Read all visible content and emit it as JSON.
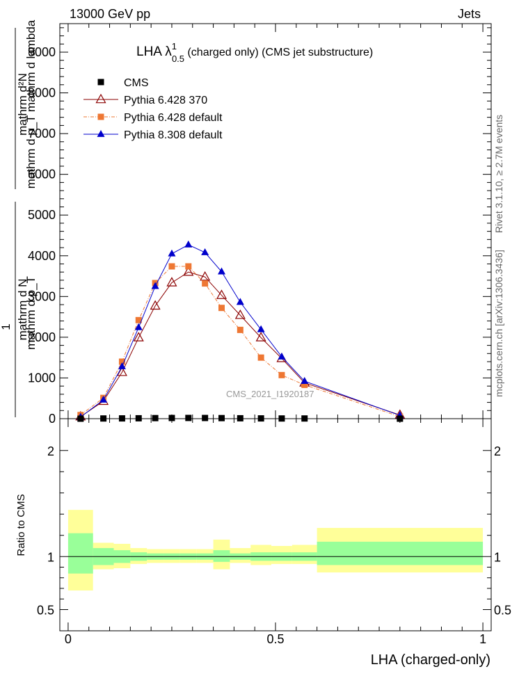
{
  "header": {
    "left_label": "13000 GeV pp",
    "right_label": "Jets"
  },
  "side_labels": {
    "rivet": "Rivet 3.1.10, ≥ 2.7M events",
    "mcplots": "mcplots.cern.ch [arXiv:1306.3436]"
  },
  "main_plot": {
    "title_prefix": "LHA λ",
    "title_sup": "1",
    "title_sub": "0.5",
    "title_suffix": " (charged only) (CMS jet substructure)",
    "watermark": "CMS_2021_I1920187",
    "ylabel_numerator_1": "mathrm d²N",
    "ylabel_denominator_1": "mathrm d p_T mathrm d lambda",
    "ylabel_fraction_prefix": "1",
    "ylabel_numerator_2": "mathrm d N",
    "ylabel_denominator_2": "mathrm d p_T",
    "ylim": [
      0,
      9700
    ],
    "yticks": [
      0,
      1000,
      2000,
      3000,
      4000,
      5000,
      6000,
      7000,
      8000,
      9000
    ],
    "ytick_labels": [
      "0",
      "1000",
      "2000",
      "3000",
      "4000",
      "5000",
      "6000",
      "7000",
      "8000",
      "9000"
    ]
  },
  "ratio_plot": {
    "ylabel": "Ratio to CMS",
    "ylim": [
      0.3,
      2.3
    ],
    "yticks": [
      0.5,
      1,
      2
    ],
    "ytick_labels": [
      "0.5",
      "1",
      "2"
    ]
  },
  "x_axis": {
    "label": "LHA (charged-only)",
    "xlim": [
      -0.02,
      1.02
    ],
    "xticks": [
      0,
      0.5,
      1
    ],
    "xtick_labels": [
      "0",
      "0.5",
      "1"
    ]
  },
  "legend": {
    "placement": "top-left",
    "entries": [
      {
        "label": "CMS",
        "color": "#000000",
        "marker": "square"
      },
      {
        "label": "Pythia 6.428 370",
        "color": "#8b0000",
        "marker": "open-triangle"
      },
      {
        "label": "Pythia 6.428 default",
        "color": "#ee7733",
        "marker": "square"
      },
      {
        "label": "Pythia 8.308 default",
        "color": "#0000cc",
        "marker": "triangle"
      }
    ]
  },
  "chart_data": {
    "type": "line",
    "title": "LHA λ^1_0.5 (charged only) (CMS jet substructure)",
    "xlabel": "LHA (charged-only)",
    "x": [
      0.03,
      0.085,
      0.13,
      0.17,
      0.21,
      0.25,
      0.29,
      0.33,
      0.37,
      0.415,
      0.465,
      0.515,
      0.57,
      0.8
    ],
    "x_bins": [
      [
        0.0,
        0.06
      ],
      [
        0.06,
        0.11
      ],
      [
        0.11,
        0.15
      ],
      [
        0.15,
        0.19
      ],
      [
        0.19,
        0.23
      ],
      [
        0.23,
        0.27
      ],
      [
        0.27,
        0.31
      ],
      [
        0.31,
        0.35
      ],
      [
        0.35,
        0.39
      ],
      [
        0.39,
        0.44
      ],
      [
        0.44,
        0.49
      ],
      [
        0.49,
        0.54
      ],
      [
        0.54,
        0.6
      ],
      [
        0.6,
        1.0
      ]
    ],
    "series": [
      {
        "name": "CMS",
        "values": [
          0,
          5,
          7,
          10,
          14,
          17,
          18,
          17,
          14,
          10,
          7,
          5,
          5,
          0
        ]
      },
      {
        "name": "Pythia 6.428 370",
        "values": [
          50,
          430,
          1140,
          1990,
          2770,
          3340,
          3600,
          3480,
          3030,
          2540,
          1990,
          1480,
          880,
          90
        ]
      },
      {
        "name": "Pythia 6.428 default",
        "values": [
          90,
          510,
          1400,
          2420,
          3330,
          3740,
          3740,
          3320,
          2720,
          2180,
          1500,
          1070,
          830,
          50
        ]
      },
      {
        "name": "Pythia 8.308 default",
        "values": [
          40,
          460,
          1280,
          2240,
          3250,
          4050,
          4270,
          4080,
          3610,
          2860,
          2190,
          1520,
          920,
          80
        ]
      }
    ],
    "ratio_bands": {
      "reference": 1,
      "inner_low": [
        0.84,
        0.92,
        0.94,
        0.96,
        0.97,
        0.97,
        0.97,
        0.97,
        0.95,
        0.97,
        0.96,
        0.96,
        0.96,
        0.92
      ],
      "inner_high": [
        1.22,
        1.08,
        1.06,
        1.04,
        1.03,
        1.03,
        1.03,
        1.03,
        1.06,
        1.03,
        1.04,
        1.04,
        1.04,
        1.14
      ],
      "outer_low": [
        0.68,
        0.88,
        0.89,
        0.93,
        0.94,
        0.94,
        0.94,
        0.94,
        0.88,
        0.94,
        0.92,
        0.93,
        0.93,
        0.85
      ],
      "outer_high": [
        1.44,
        1.13,
        1.12,
        1.08,
        1.07,
        1.07,
        1.07,
        1.07,
        1.16,
        1.08,
        1.11,
        1.1,
        1.11,
        1.27
      ],
      "inner_color": "#99ff99",
      "outer_color": "#ffff99"
    }
  }
}
